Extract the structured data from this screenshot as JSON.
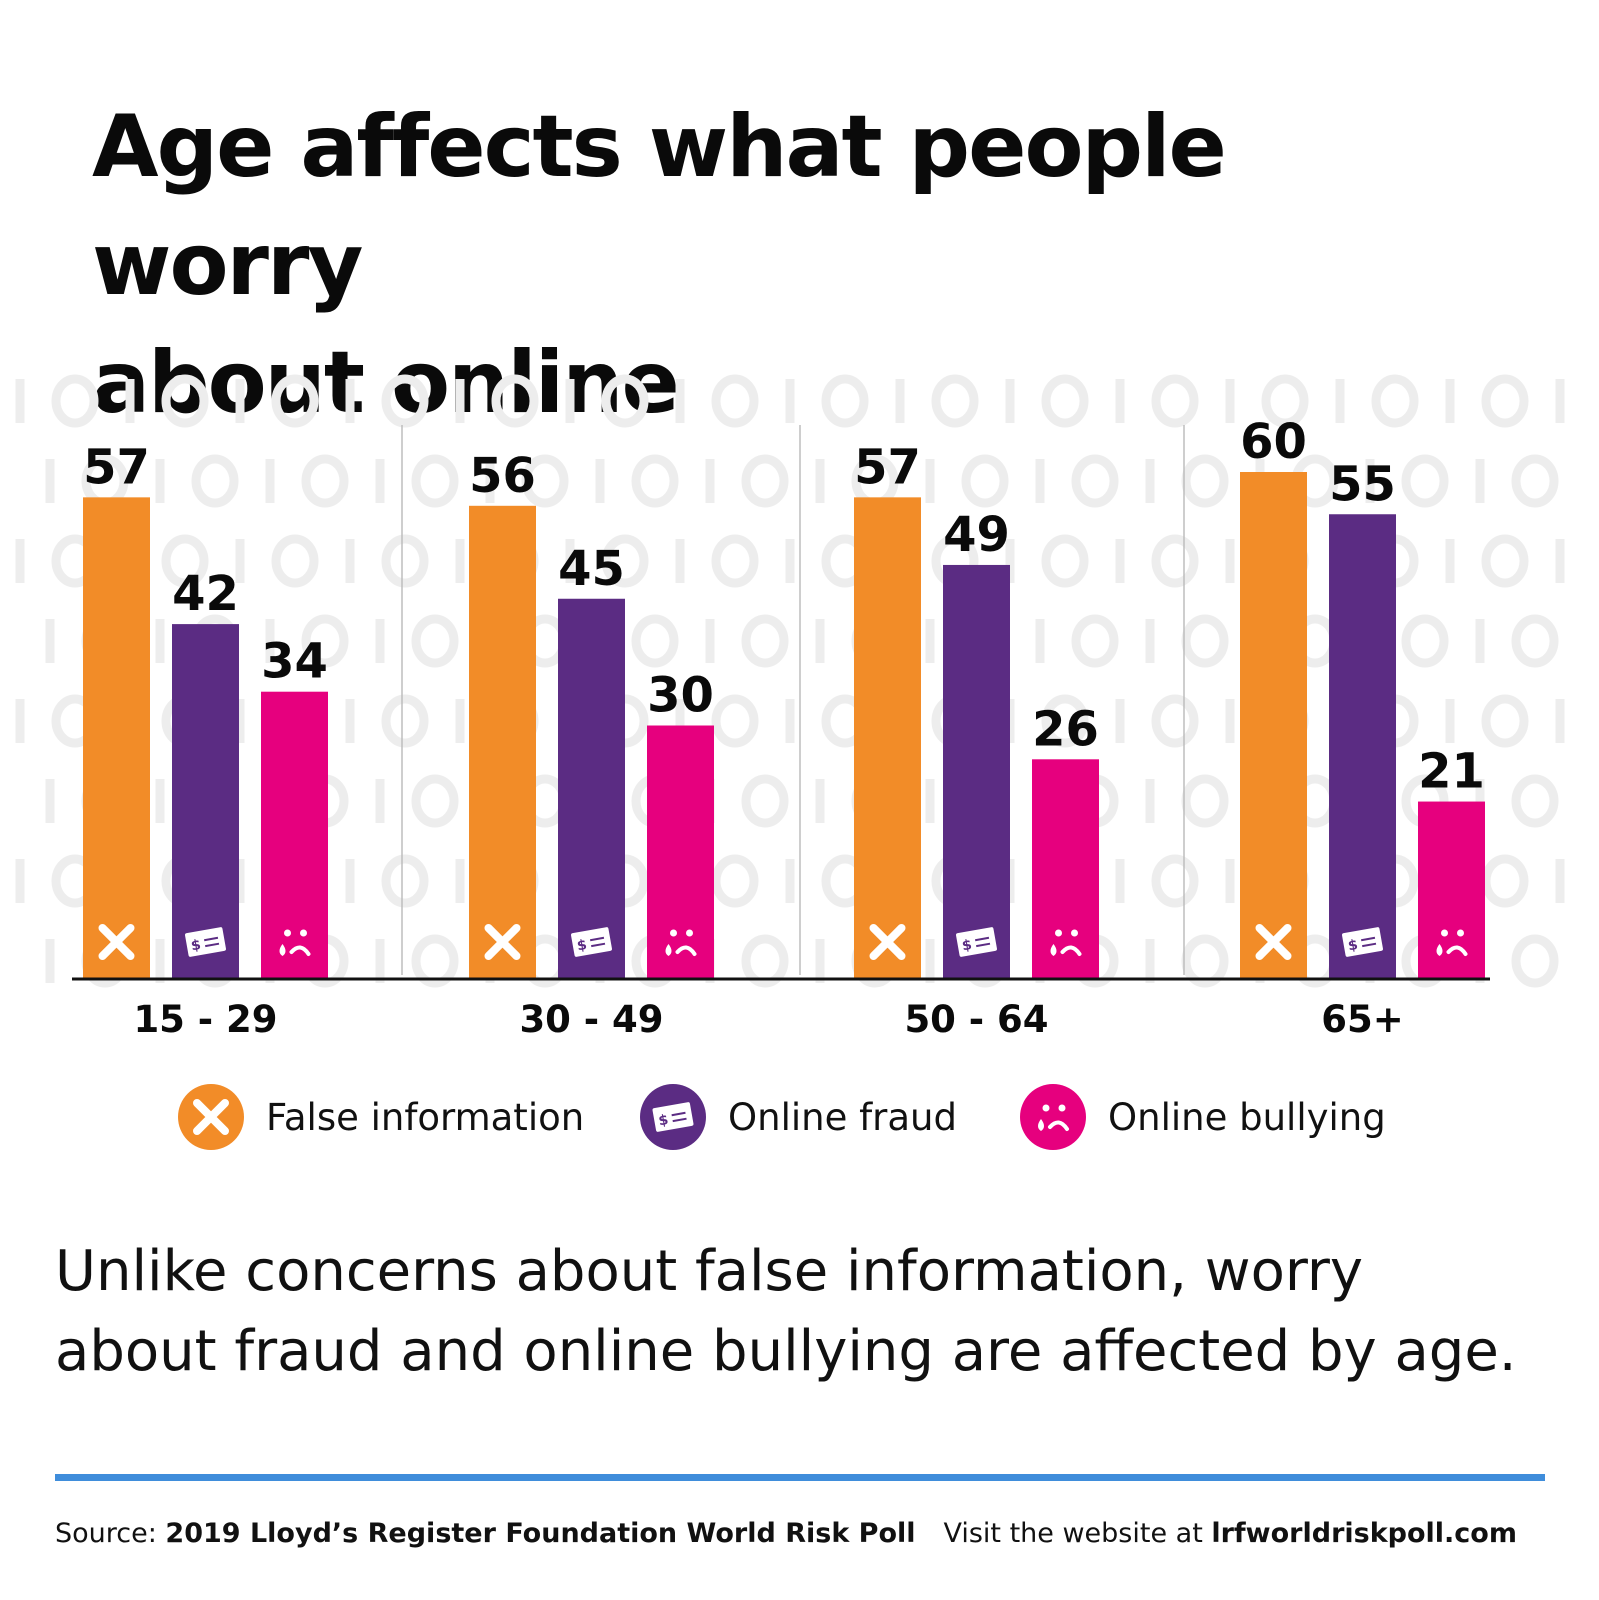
{
  "title_line1": "Age affects what people worry",
  "title_line2": "about online",
  "summary_line1": "Unlike concerns about false information, worry",
  "summary_line2": "about fraud and online bullying are affected by age.",
  "footer": {
    "source_prefix": "Source: ",
    "source_name": "2019 Lloyd’s Register Foundation World Risk Poll",
    "visit_prefix": "Visit the website at ",
    "visit_site": "lrfworldriskpoll.com"
  },
  "colors": {
    "false_information": "#F28C28",
    "online_fraud": "#5B2C83",
    "online_bullying": "#E6007E",
    "accent_rule": "#3F8DDB",
    "background_pattern": "#EDEDED"
  },
  "legend": [
    {
      "label": "False information",
      "icon": "x-icon",
      "color": "#F28C28"
    },
    {
      "label": "Online fraud",
      "icon": "cheque-icon",
      "color": "#5B2C83"
    },
    {
      "label": "Online bullying",
      "icon": "sad-face-icon",
      "color": "#E6007E"
    }
  ],
  "chart_data": {
    "type": "bar",
    "categories": [
      "15 - 29",
      "30 - 49",
      "50 - 64",
      "65+"
    ],
    "series": [
      {
        "name": "False information",
        "values": [
          57,
          56,
          57,
          60
        ]
      },
      {
        "name": "Online fraud",
        "values": [
          42,
          45,
          49,
          55
        ]
      },
      {
        "name": "Online bullying",
        "values": [
          34,
          30,
          26,
          21
        ]
      }
    ],
    "data_labels": true,
    "xlabel": "",
    "ylabel": "",
    "ylim": [
      0,
      60
    ],
    "grid": false,
    "legend_position": "bottom"
  }
}
